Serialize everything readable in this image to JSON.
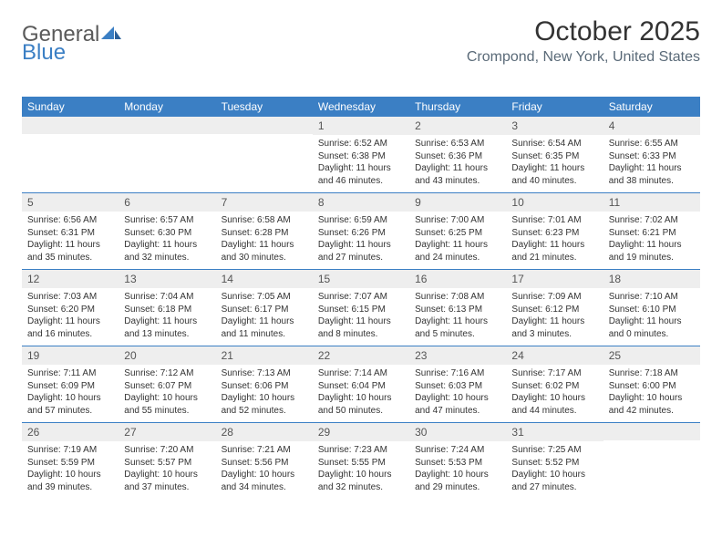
{
  "logo": {
    "text1": "General",
    "text2": "Blue"
  },
  "title": "October 2025",
  "subtitle": "Crompond, New York, United States",
  "colors": {
    "header_bg": "#3b7fc4",
    "daynum_bg": "#eeeeee",
    "border": "#3b7fc4",
    "text": "#333333",
    "logo_gray": "#5a5a5a",
    "logo_blue": "#3b7fc4"
  },
  "weekdays": [
    "Sunday",
    "Monday",
    "Tuesday",
    "Wednesday",
    "Thursday",
    "Friday",
    "Saturday"
  ],
  "weeks": [
    [
      {
        "n": "",
        "sr": "",
        "ss": "",
        "dl": ""
      },
      {
        "n": "",
        "sr": "",
        "ss": "",
        "dl": ""
      },
      {
        "n": "",
        "sr": "",
        "ss": "",
        "dl": ""
      },
      {
        "n": "1",
        "sr": "Sunrise: 6:52 AM",
        "ss": "Sunset: 6:38 PM",
        "dl": "Daylight: 11 hours and 46 minutes."
      },
      {
        "n": "2",
        "sr": "Sunrise: 6:53 AM",
        "ss": "Sunset: 6:36 PM",
        "dl": "Daylight: 11 hours and 43 minutes."
      },
      {
        "n": "3",
        "sr": "Sunrise: 6:54 AM",
        "ss": "Sunset: 6:35 PM",
        "dl": "Daylight: 11 hours and 40 minutes."
      },
      {
        "n": "4",
        "sr": "Sunrise: 6:55 AM",
        "ss": "Sunset: 6:33 PM",
        "dl": "Daylight: 11 hours and 38 minutes."
      }
    ],
    [
      {
        "n": "5",
        "sr": "Sunrise: 6:56 AM",
        "ss": "Sunset: 6:31 PM",
        "dl": "Daylight: 11 hours and 35 minutes."
      },
      {
        "n": "6",
        "sr": "Sunrise: 6:57 AM",
        "ss": "Sunset: 6:30 PM",
        "dl": "Daylight: 11 hours and 32 minutes."
      },
      {
        "n": "7",
        "sr": "Sunrise: 6:58 AM",
        "ss": "Sunset: 6:28 PM",
        "dl": "Daylight: 11 hours and 30 minutes."
      },
      {
        "n": "8",
        "sr": "Sunrise: 6:59 AM",
        "ss": "Sunset: 6:26 PM",
        "dl": "Daylight: 11 hours and 27 minutes."
      },
      {
        "n": "9",
        "sr": "Sunrise: 7:00 AM",
        "ss": "Sunset: 6:25 PM",
        "dl": "Daylight: 11 hours and 24 minutes."
      },
      {
        "n": "10",
        "sr": "Sunrise: 7:01 AM",
        "ss": "Sunset: 6:23 PM",
        "dl": "Daylight: 11 hours and 21 minutes."
      },
      {
        "n": "11",
        "sr": "Sunrise: 7:02 AM",
        "ss": "Sunset: 6:21 PM",
        "dl": "Daylight: 11 hours and 19 minutes."
      }
    ],
    [
      {
        "n": "12",
        "sr": "Sunrise: 7:03 AM",
        "ss": "Sunset: 6:20 PM",
        "dl": "Daylight: 11 hours and 16 minutes."
      },
      {
        "n": "13",
        "sr": "Sunrise: 7:04 AM",
        "ss": "Sunset: 6:18 PM",
        "dl": "Daylight: 11 hours and 13 minutes."
      },
      {
        "n": "14",
        "sr": "Sunrise: 7:05 AM",
        "ss": "Sunset: 6:17 PM",
        "dl": "Daylight: 11 hours and 11 minutes."
      },
      {
        "n": "15",
        "sr": "Sunrise: 7:07 AM",
        "ss": "Sunset: 6:15 PM",
        "dl": "Daylight: 11 hours and 8 minutes."
      },
      {
        "n": "16",
        "sr": "Sunrise: 7:08 AM",
        "ss": "Sunset: 6:13 PM",
        "dl": "Daylight: 11 hours and 5 minutes."
      },
      {
        "n": "17",
        "sr": "Sunrise: 7:09 AM",
        "ss": "Sunset: 6:12 PM",
        "dl": "Daylight: 11 hours and 3 minutes."
      },
      {
        "n": "18",
        "sr": "Sunrise: 7:10 AM",
        "ss": "Sunset: 6:10 PM",
        "dl": "Daylight: 11 hours and 0 minutes."
      }
    ],
    [
      {
        "n": "19",
        "sr": "Sunrise: 7:11 AM",
        "ss": "Sunset: 6:09 PM",
        "dl": "Daylight: 10 hours and 57 minutes."
      },
      {
        "n": "20",
        "sr": "Sunrise: 7:12 AM",
        "ss": "Sunset: 6:07 PM",
        "dl": "Daylight: 10 hours and 55 minutes."
      },
      {
        "n": "21",
        "sr": "Sunrise: 7:13 AM",
        "ss": "Sunset: 6:06 PM",
        "dl": "Daylight: 10 hours and 52 minutes."
      },
      {
        "n": "22",
        "sr": "Sunrise: 7:14 AM",
        "ss": "Sunset: 6:04 PM",
        "dl": "Daylight: 10 hours and 50 minutes."
      },
      {
        "n": "23",
        "sr": "Sunrise: 7:16 AM",
        "ss": "Sunset: 6:03 PM",
        "dl": "Daylight: 10 hours and 47 minutes."
      },
      {
        "n": "24",
        "sr": "Sunrise: 7:17 AM",
        "ss": "Sunset: 6:02 PM",
        "dl": "Daylight: 10 hours and 44 minutes."
      },
      {
        "n": "25",
        "sr": "Sunrise: 7:18 AM",
        "ss": "Sunset: 6:00 PM",
        "dl": "Daylight: 10 hours and 42 minutes."
      }
    ],
    [
      {
        "n": "26",
        "sr": "Sunrise: 7:19 AM",
        "ss": "Sunset: 5:59 PM",
        "dl": "Daylight: 10 hours and 39 minutes."
      },
      {
        "n": "27",
        "sr": "Sunrise: 7:20 AM",
        "ss": "Sunset: 5:57 PM",
        "dl": "Daylight: 10 hours and 37 minutes."
      },
      {
        "n": "28",
        "sr": "Sunrise: 7:21 AM",
        "ss": "Sunset: 5:56 PM",
        "dl": "Daylight: 10 hours and 34 minutes."
      },
      {
        "n": "29",
        "sr": "Sunrise: 7:23 AM",
        "ss": "Sunset: 5:55 PM",
        "dl": "Daylight: 10 hours and 32 minutes."
      },
      {
        "n": "30",
        "sr": "Sunrise: 7:24 AM",
        "ss": "Sunset: 5:53 PM",
        "dl": "Daylight: 10 hours and 29 minutes."
      },
      {
        "n": "31",
        "sr": "Sunrise: 7:25 AM",
        "ss": "Sunset: 5:52 PM",
        "dl": "Daylight: 10 hours and 27 minutes."
      },
      {
        "n": "",
        "sr": "",
        "ss": "",
        "dl": ""
      }
    ]
  ]
}
